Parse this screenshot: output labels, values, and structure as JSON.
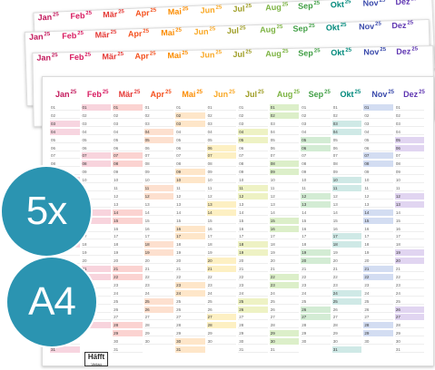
{
  "months": [
    {
      "name": "Jan",
      "year": "25",
      "color": "#c2185b"
    },
    {
      "name": "Feb",
      "year": "25",
      "color": "#d81b60"
    },
    {
      "name": "Mär",
      "year": "25",
      "color": "#e53935"
    },
    {
      "name": "Apr",
      "year": "25",
      "color": "#f4511e"
    },
    {
      "name": "Mai",
      "year": "25",
      "color": "#fb8c00"
    },
    {
      "name": "Jun",
      "year": "25",
      "color": "#f9a825"
    },
    {
      "name": "Jul",
      "year": "25",
      "color": "#9e9d24"
    },
    {
      "name": "Aug",
      "year": "25",
      "color": "#7cb342"
    },
    {
      "name": "Sep",
      "year": "25",
      "color": "#43a047"
    },
    {
      "name": "Okt",
      "year": "25",
      "color": "#00897b"
    },
    {
      "name": "Nov",
      "year": "25",
      "color": "#3949ab"
    },
    {
      "name": "Dez",
      "year": "25",
      "color": "#5e35b1"
    }
  ],
  "tints": [
    "#f7d5e0",
    "#f8d4dd",
    "#fbd3d1",
    "#fde0cf",
    "#fee6c9",
    "#fdf0c3",
    "#eef2c4",
    "#dcefc9",
    "#d3ecd4",
    "#cfe9e6",
    "#d3ddf2",
    "#e1d5f1"
  ],
  "badges": {
    "count": "5x",
    "format": "A4",
    "color": "#2b94b1"
  },
  "logo": {
    "brand": "Häfft",
    "sub": "Verlag"
  }
}
